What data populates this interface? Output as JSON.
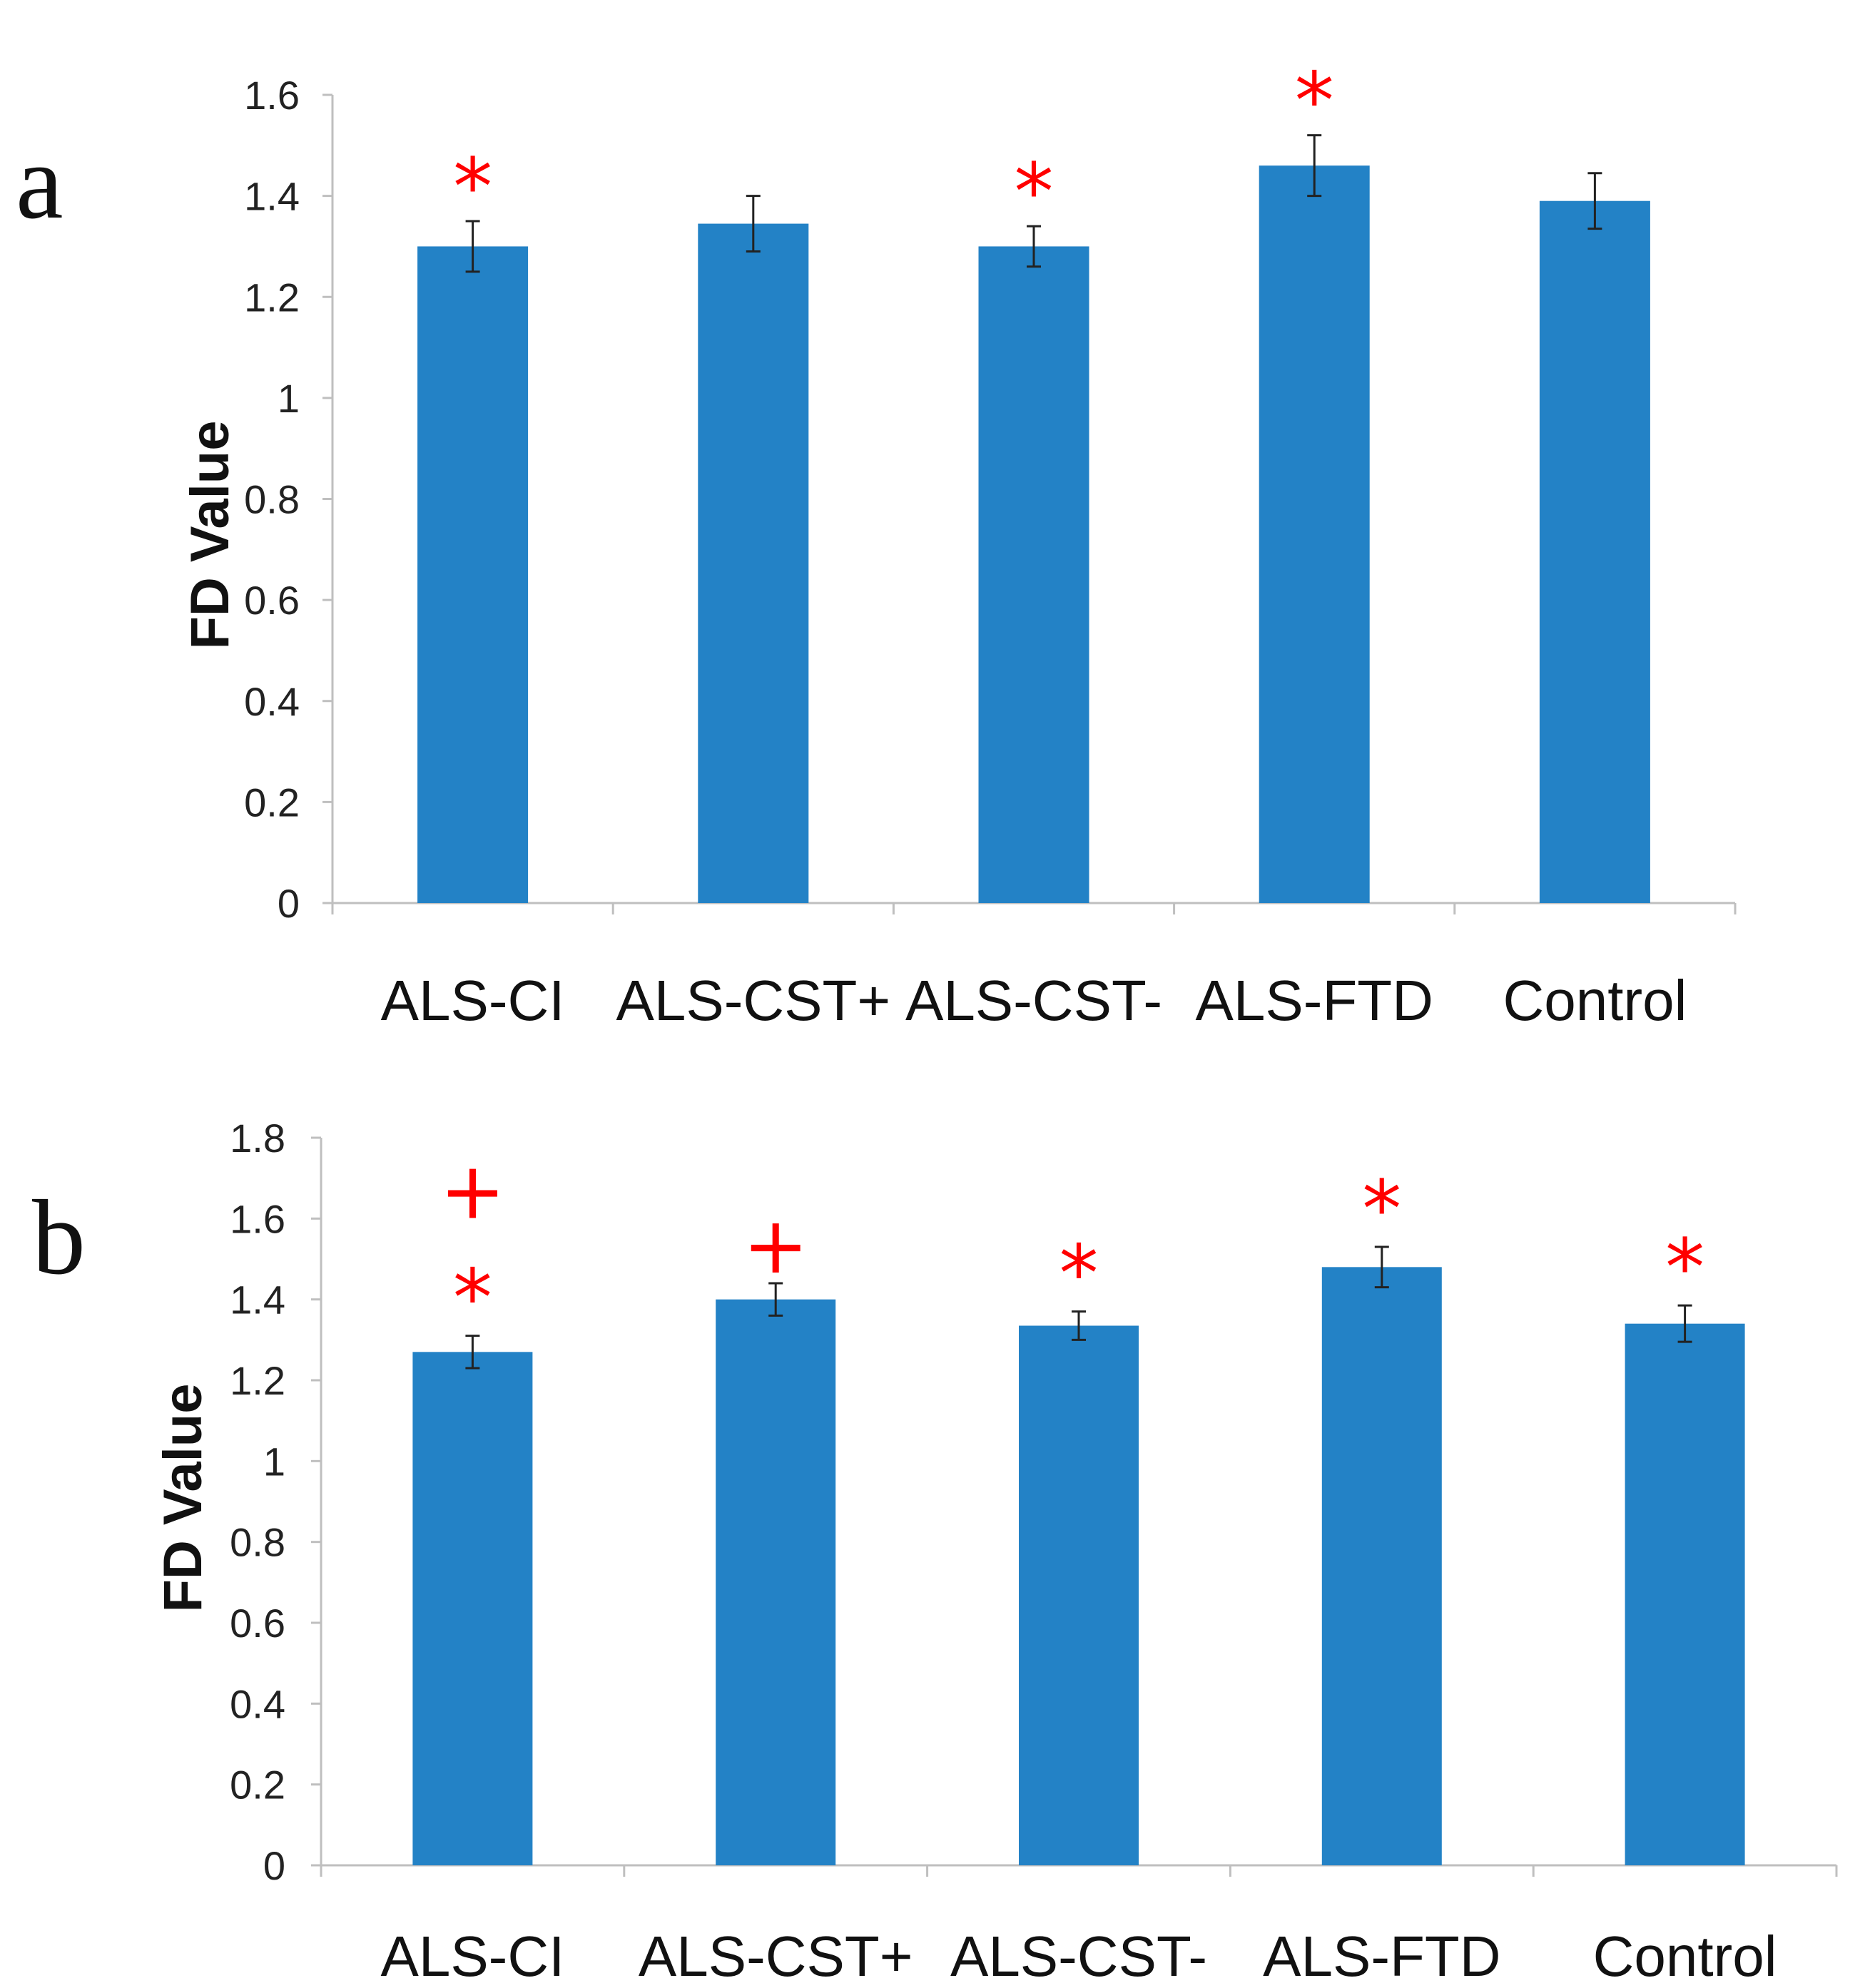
{
  "chart_data": [
    {
      "panel": "a",
      "type": "bar",
      "ylabel": "FD Value",
      "ylim": [
        0,
        1.6
      ],
      "yticks": [
        "0",
        "0.2",
        "0.4",
        "0.6",
        "0.8",
        "1",
        "1.2",
        "1.4",
        "1.6"
      ],
      "categories": [
        "ALS-CI",
        "ALS-CST+",
        "ALS-CST-",
        "ALS-FTD",
        "Control"
      ],
      "values": [
        1.3,
        1.345,
        1.3,
        1.46,
        1.39
      ],
      "errors": [
        0.05,
        0.055,
        0.04,
        0.06,
        0.055
      ],
      "significance": [
        [
          "*"
        ],
        [],
        [
          "*"
        ],
        [
          "*"
        ],
        []
      ],
      "bar_color": "#2382c6",
      "marker_color": "#ff0000",
      "grid": false,
      "legend": "none"
    },
    {
      "panel": "b",
      "type": "bar",
      "ylabel": "FD Value",
      "ylim": [
        0,
        1.8
      ],
      "yticks": [
        "0",
        "0.2",
        "0.4",
        "0.6",
        "0.8",
        "1",
        "1.2",
        "1.4",
        "1.6",
        "1.8"
      ],
      "categories": [
        "ALS-CI",
        "ALS-CST+",
        "ALS-CST-",
        "ALS-FTD",
        "Control"
      ],
      "values": [
        1.27,
        1.4,
        1.335,
        1.48,
        1.34
      ],
      "errors": [
        0.04,
        0.04,
        0.035,
        0.05,
        0.045
      ],
      "significance": [
        [
          "+",
          "*"
        ],
        [
          "+"
        ],
        [
          "*"
        ],
        [
          "*"
        ],
        [
          "*"
        ]
      ],
      "bar_color": "#2382c6",
      "marker_color": "#ff0000",
      "grid": false,
      "legend": "none"
    }
  ]
}
